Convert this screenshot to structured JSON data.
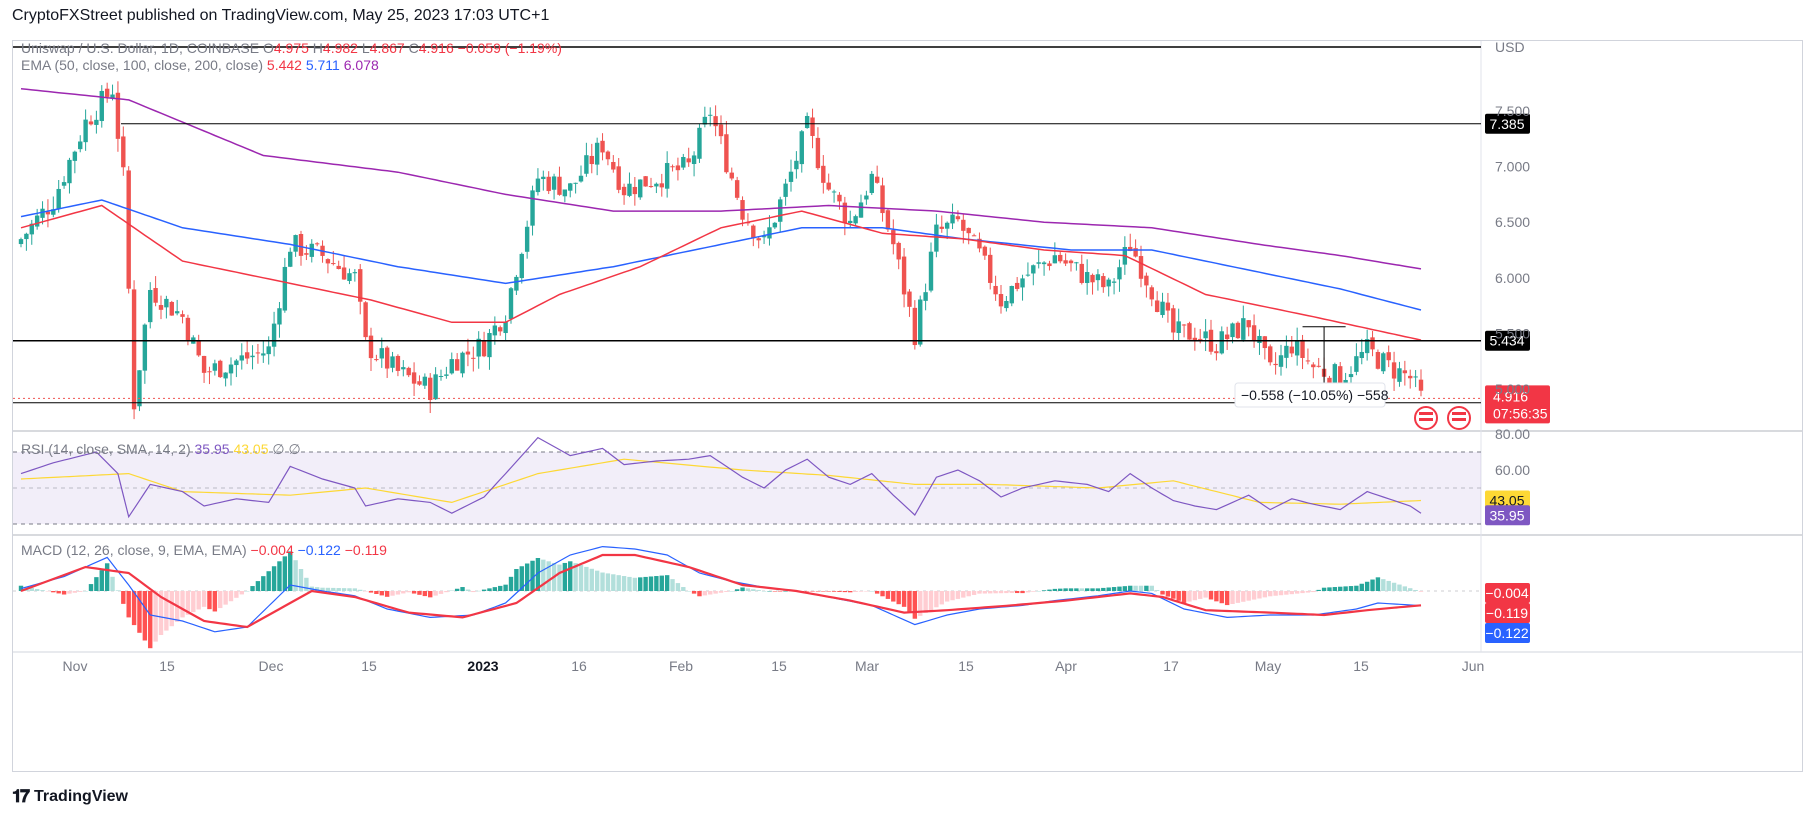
{
  "header": {
    "title": "CryptoFXStreet published on TradingView.com, May 25, 2023 17:03 UTC+1"
  },
  "footer": {
    "brand": "TradingView",
    "logo_icon": "tradingview-logo-icon"
  },
  "legend": {
    "symbol": "Uniswap / U.S. Dollar, 1D, COINBASE",
    "ohlc": [
      {
        "k": "O",
        "v": "4.975"
      },
      {
        "k": "H",
        "v": "4.982"
      },
      {
        "k": "L",
        "v": "4.867"
      },
      {
        "k": "C",
        "v": "4.916"
      }
    ],
    "change": "−0.059 (−1.19%)",
    "ema_label": "EMA (50, close, 100, close, 200, close)",
    "ema_values": [
      "5.442",
      "5.711",
      "6.078"
    ],
    "rsi_label": "RSI (14, close, SMA, 14, 2)",
    "rsi_values": [
      "35.95",
      "43.05"
    ],
    "rsi_extra": "∅ ∅",
    "macd_label": "MACD (12, 26, close, 9, EMA, EMA)",
    "macd_values": [
      "−0.004",
      "−0.122",
      "−0.119"
    ]
  },
  "colors": {
    "up": "#26a69a",
    "down": "#ef5350",
    "ema50": "#f23645",
    "ema100": "#2962ff",
    "ema200": "#9c27b0",
    "rsi": "#7e57c2",
    "rsi_sma": "#fdd835",
    "macd": "#2962ff",
    "signal": "#f23645",
    "hist_up_strong": "#26a69a",
    "hist_up_weak": "#b2dfdb",
    "hist_down_strong": "#ff5252",
    "hist_down_weak": "#ffcdd2"
  },
  "chart_data": {
    "type": "candlestick",
    "currency": "USD",
    "price_ticks": [
      "7.500",
      "7.000",
      "6.500",
      "6.000",
      "5.500",
      "5.000"
    ],
    "rsi_ticks": [
      "80.00",
      "60.00"
    ],
    "x_labels": [
      "Nov",
      "15",
      "Dec",
      "15",
      "2023",
      "16",
      "Feb",
      "15",
      "Mar",
      "15",
      "Apr",
      "17",
      "May",
      "15",
      "Jun"
    ],
    "horizontal_levels": [
      {
        "value": 7.385,
        "label": "7.385"
      },
      {
        "value": 5.434,
        "label": "5.434"
      },
      {
        "value": 4.876,
        "label": "4.876"
      }
    ],
    "last_price": {
      "value": "4.916",
      "countdown": "07:56:35"
    },
    "measure": {
      "label": "−0.558 (−10.05%) −558",
      "from": 5.56,
      "to": 5.0
    },
    "rsi_badges": [
      "43.05",
      "35.95"
    ],
    "macd_badges": [
      "−0.004",
      "−0.119",
      "−0.122"
    ],
    "close_anchors": [
      [
        0,
        6.35
      ],
      [
        6,
        6.7
      ],
      [
        12,
        7.4
      ],
      [
        17,
        7.7
      ],
      [
        19,
        6.9
      ],
      [
        21,
        4.88
      ],
      [
        24,
        5.9
      ],
      [
        30,
        5.65
      ],
      [
        34,
        5.15
      ],
      [
        40,
        5.25
      ],
      [
        46,
        5.35
      ],
      [
        50,
        6.3
      ],
      [
        56,
        6.2
      ],
      [
        62,
        6.0
      ],
      [
        64,
        5.4
      ],
      [
        70,
        5.15
      ],
      [
        76,
        5.0
      ],
      [
        80,
        5.25
      ],
      [
        86,
        5.4
      ],
      [
        90,
        5.7
      ],
      [
        96,
        6.9
      ],
      [
        102,
        6.8
      ],
      [
        108,
        7.2
      ],
      [
        112,
        6.8
      ],
      [
        118,
        6.9
      ],
      [
        124,
        7.0
      ],
      [
        128,
        7.5
      ],
      [
        134,
        6.6
      ],
      [
        138,
        6.3
      ],
      [
        142,
        6.8
      ],
      [
        146,
        7.35
      ],
      [
        150,
        6.8
      ],
      [
        154,
        6.5
      ],
      [
        158,
        6.9
      ],
      [
        162,
        6.3
      ],
      [
        166,
        5.5
      ],
      [
        170,
        6.4
      ],
      [
        174,
        6.5
      ],
      [
        178,
        6.2
      ],
      [
        182,
        5.8
      ],
      [
        186,
        6.0
      ],
      [
        192,
        6.2
      ],
      [
        198,
        6.0
      ],
      [
        202,
        5.9
      ],
      [
        206,
        6.3
      ],
      [
        210,
        5.9
      ],
      [
        214,
        5.5
      ],
      [
        218,
        5.5
      ],
      [
        222,
        5.4
      ],
      [
        228,
        5.6
      ],
      [
        232,
        5.15
      ],
      [
        236,
        5.4
      ],
      [
        240,
        5.2
      ],
      [
        245,
        5.1
      ],
      [
        250,
        5.35
      ],
      [
        254,
        5.2
      ],
      [
        258,
        5.1
      ],
      [
        260,
        4.92
      ]
    ],
    "ema50_anchors": [
      [
        0,
        6.45
      ],
      [
        15,
        6.65
      ],
      [
        30,
        6.15
      ],
      [
        50,
        5.95
      ],
      [
        65,
        5.8
      ],
      [
        80,
        5.6
      ],
      [
        90,
        5.6
      ],
      [
        100,
        5.85
      ],
      [
        115,
        6.1
      ],
      [
        130,
        6.45
      ],
      [
        145,
        6.6
      ],
      [
        160,
        6.4
      ],
      [
        175,
        6.35
      ],
      [
        190,
        6.25
      ],
      [
        205,
        6.2
      ],
      [
        220,
        5.85
      ],
      [
        240,
        5.65
      ],
      [
        260,
        5.44
      ]
    ],
    "ema100_anchors": [
      [
        0,
        6.55
      ],
      [
        15,
        6.7
      ],
      [
        30,
        6.45
      ],
      [
        50,
        6.3
      ],
      [
        70,
        6.1
      ],
      [
        90,
        5.95
      ],
      [
        110,
        6.1
      ],
      [
        130,
        6.3
      ],
      [
        145,
        6.45
      ],
      [
        160,
        6.45
      ],
      [
        175,
        6.35
      ],
      [
        195,
        6.25
      ],
      [
        210,
        6.25
      ],
      [
        230,
        6.05
      ],
      [
        245,
        5.9
      ],
      [
        260,
        5.71
      ]
    ],
    "ema200_anchors": [
      [
        0,
        7.7
      ],
      [
        20,
        7.6
      ],
      [
        45,
        7.1
      ],
      [
        70,
        6.95
      ],
      [
        90,
        6.75
      ],
      [
        110,
        6.6
      ],
      [
        130,
        6.6
      ],
      [
        150,
        6.65
      ],
      [
        170,
        6.6
      ],
      [
        190,
        6.5
      ],
      [
        210,
        6.45
      ],
      [
        230,
        6.3
      ],
      [
        245,
        6.2
      ],
      [
        260,
        6.08
      ]
    ],
    "rsi_anchors": [
      [
        0,
        58
      ],
      [
        6,
        64
      ],
      [
        14,
        70
      ],
      [
        18,
        58
      ],
      [
        20,
        34
      ],
      [
        24,
        52
      ],
      [
        30,
        48
      ],
      [
        34,
        40
      ],
      [
        40,
        44
      ],
      [
        46,
        42
      ],
      [
        50,
        62
      ],
      [
        56,
        55
      ],
      [
        62,
        50
      ],
      [
        64,
        40
      ],
      [
        70,
        44
      ],
      [
        76,
        42
      ],
      [
        80,
        36
      ],
      [
        86,
        45
      ],
      [
        90,
        58
      ],
      [
        96,
        78
      ],
      [
        102,
        68
      ],
      [
        108,
        72
      ],
      [
        112,
        63
      ],
      [
        118,
        65
      ],
      [
        124,
        66
      ],
      [
        128,
        68
      ],
      [
        134,
        56
      ],
      [
        138,
        50
      ],
      [
        142,
        60
      ],
      [
        146,
        66
      ],
      [
        150,
        56
      ],
      [
        154,
        52
      ],
      [
        158,
        58
      ],
      [
        162,
        46
      ],
      [
        166,
        35
      ],
      [
        170,
        56
      ],
      [
        174,
        60
      ],
      [
        178,
        54
      ],
      [
        182,
        45
      ],
      [
        186,
        50
      ],
      [
        192,
        54
      ],
      [
        198,
        52
      ],
      [
        202,
        48
      ],
      [
        206,
        58
      ],
      [
        210,
        50
      ],
      [
        214,
        43
      ],
      [
        218,
        40
      ],
      [
        222,
        38
      ],
      [
        228,
        46
      ],
      [
        232,
        38
      ],
      [
        236,
        44
      ],
      [
        240,
        41
      ],
      [
        245,
        38
      ],
      [
        250,
        48
      ],
      [
        254,
        44
      ],
      [
        258,
        40
      ],
      [
        260,
        35.95
      ]
    ],
    "rsi_sma_anchors": [
      [
        0,
        55
      ],
      [
        20,
        58
      ],
      [
        30,
        48
      ],
      [
        50,
        46
      ],
      [
        64,
        50
      ],
      [
        80,
        42
      ],
      [
        96,
        58
      ],
      [
        112,
        66
      ],
      [
        134,
        60
      ],
      [
        150,
        57
      ],
      [
        166,
        52
      ],
      [
        180,
        52
      ],
      [
        200,
        50
      ],
      [
        214,
        54
      ],
      [
        230,
        42
      ],
      [
        245,
        41
      ],
      [
        260,
        43.05
      ]
    ],
    "macd_anchors": [
      [
        0,
        0.02
      ],
      [
        8,
        0.12
      ],
      [
        16,
        0.28
      ],
      [
        20,
        0.05
      ],
      [
        24,
        -0.2
      ],
      [
        30,
        -0.25
      ],
      [
        36,
        -0.34
      ],
      [
        42,
        -0.3
      ],
      [
        50,
        0.05
      ],
      [
        56,
        0.0
      ],
      [
        62,
        -0.04
      ],
      [
        68,
        -0.15
      ],
      [
        76,
        -0.22
      ],
      [
        84,
        -0.2
      ],
      [
        90,
        -0.1
      ],
      [
        96,
        0.15
      ],
      [
        102,
        0.3
      ],
      [
        108,
        0.37
      ],
      [
        114,
        0.35
      ],
      [
        120,
        0.3
      ],
      [
        126,
        0.15
      ],
      [
        132,
        0.08
      ],
      [
        138,
        0.03
      ],
      [
        144,
        0.0
      ],
      [
        150,
        -0.05
      ],
      [
        158,
        -0.12
      ],
      [
        166,
        -0.28
      ],
      [
        172,
        -0.2
      ],
      [
        178,
        -0.15
      ],
      [
        186,
        -0.12
      ],
      [
        192,
        -0.08
      ],
      [
        200,
        -0.04
      ],
      [
        206,
        0.0
      ],
      [
        210,
        -0.02
      ],
      [
        216,
        -0.15
      ],
      [
        224,
        -0.22
      ],
      [
        232,
        -0.2
      ],
      [
        240,
        -0.2
      ],
      [
        248,
        -0.15
      ],
      [
        252,
        -0.1
      ],
      [
        260,
        -0.122
      ]
    ],
    "signal_anchors": [
      [
        0,
        0.0
      ],
      [
        12,
        0.2
      ],
      [
        20,
        0.15
      ],
      [
        26,
        -0.05
      ],
      [
        34,
        -0.25
      ],
      [
        42,
        -0.3
      ],
      [
        48,
        -0.15
      ],
      [
        54,
        0.0
      ],
      [
        62,
        -0.05
      ],
      [
        72,
        -0.18
      ],
      [
        82,
        -0.22
      ],
      [
        92,
        -0.1
      ],
      [
        100,
        0.15
      ],
      [
        108,
        0.3
      ],
      [
        114,
        0.3
      ],
      [
        124,
        0.2
      ],
      [
        134,
        0.05
      ],
      [
        144,
        0.0
      ],
      [
        154,
        -0.08
      ],
      [
        164,
        -0.18
      ],
      [
        172,
        -0.16
      ],
      [
        184,
        -0.12
      ],
      [
        194,
        -0.08
      ],
      [
        206,
        -0.02
      ],
      [
        212,
        -0.05
      ],
      [
        220,
        -0.16
      ],
      [
        232,
        -0.18
      ],
      [
        242,
        -0.2
      ],
      [
        250,
        -0.16
      ],
      [
        260,
        -0.119
      ]
    ]
  }
}
